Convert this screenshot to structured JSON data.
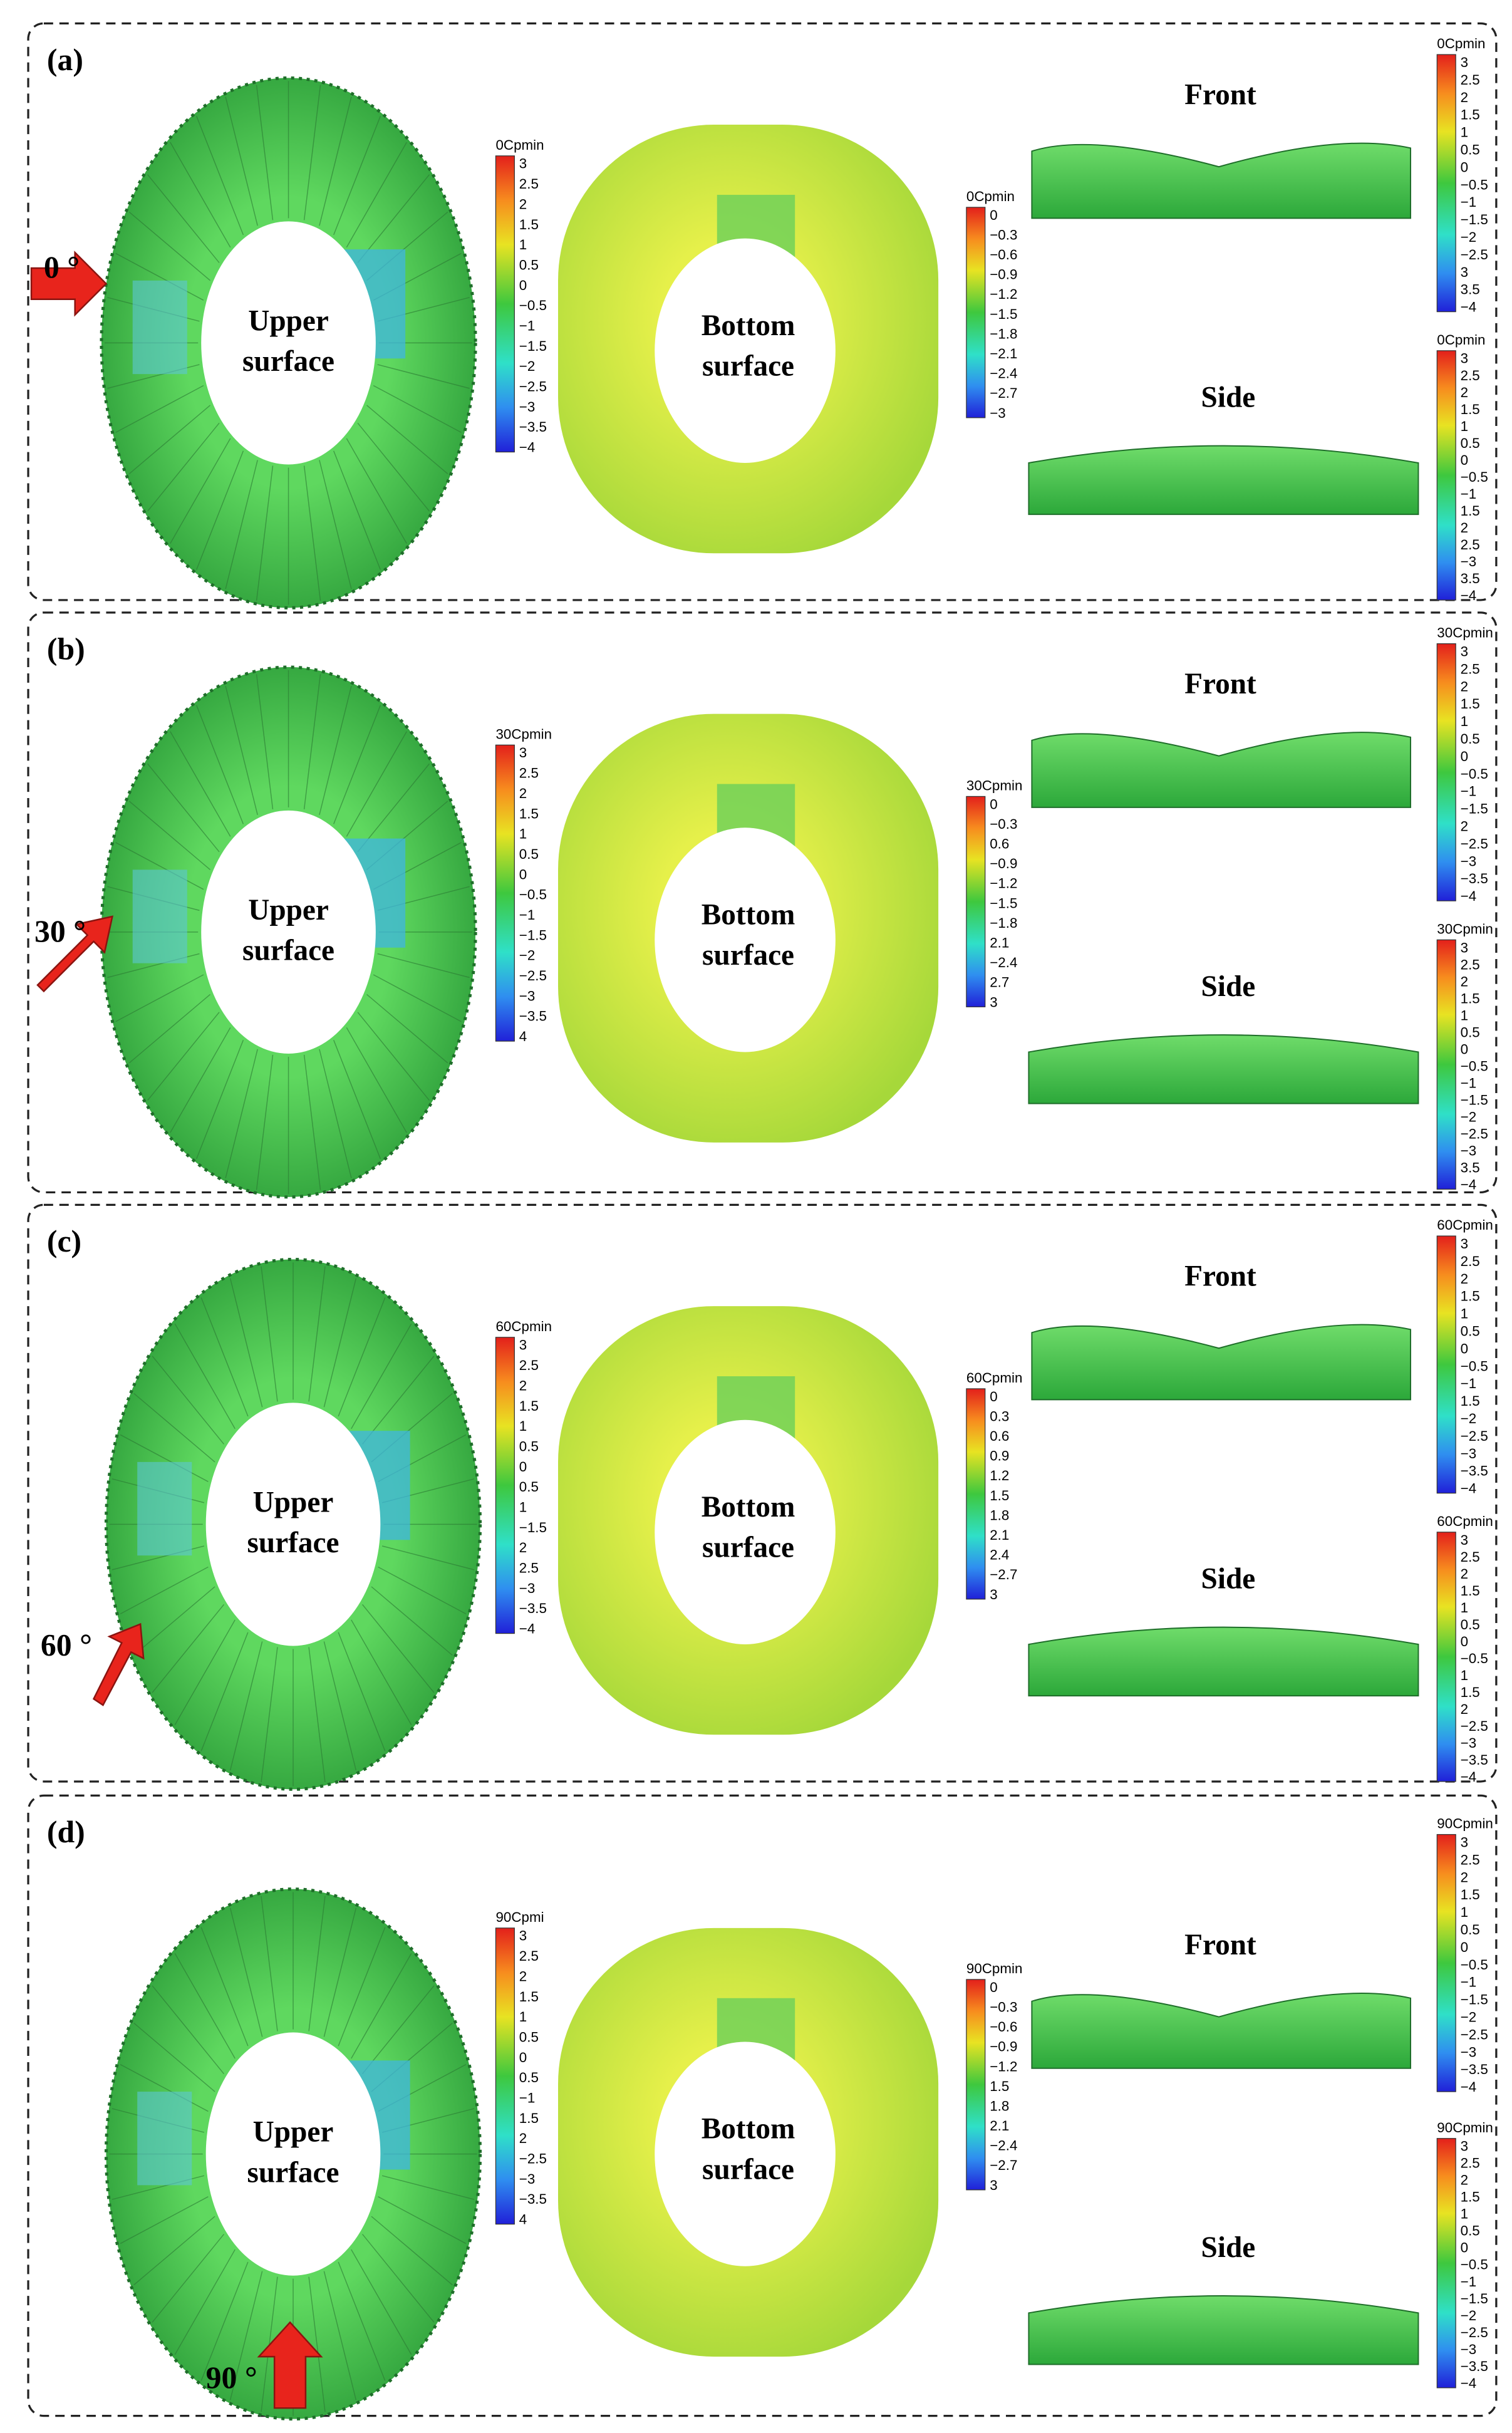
{
  "panels": [
    {
      "label": "(a)",
      "angle": "0 °",
      "upper": [
        "Upper",
        "surface"
      ],
      "bottom": [
        "Bottom",
        "surface"
      ],
      "front": "Front",
      "side": "Side",
      "colorbars": [
        {
          "title": "0Cpmin",
          "ticks": [
            "3",
            "2.5",
            "2",
            "1.5",
            "1",
            "0.5",
            "0",
            "−0.5",
            "−1",
            "−1.5",
            "−2",
            "−2.5",
            "−3",
            "−3.5",
            "−4"
          ]
        },
        {
          "title": "0Cpmin",
          "ticks": [
            "0",
            "−0.3",
            "−0.6",
            "−0.9",
            "−1.2",
            "−1.5",
            "−1.8",
            "−2.1",
            "−2.4",
            "−2.7",
            "−3"
          ]
        },
        {
          "title": "0Cpmin",
          "ticks": [
            "3",
            "2.5",
            "2",
            "1.5",
            "1",
            "0.5",
            "0",
            "−0.5",
            "−1",
            "−1.5",
            "−2",
            "−2.5",
            "3",
            "3.5",
            "−4"
          ]
        },
        {
          "title": "0Cpmin",
          "ticks": [
            "3",
            "2.5",
            "2",
            "1.5",
            "1",
            "0.5",
            "0",
            "−0.5",
            "−1",
            "1.5",
            "2",
            "2.5",
            "−3",
            "3.5",
            "−4"
          ]
        }
      ]
    },
    {
      "label": "(b)",
      "angle": "30 °",
      "upper": [
        "Upper",
        "surface"
      ],
      "bottom": [
        "Bottom",
        "surface"
      ],
      "front": "Front",
      "side": "Side",
      "colorbars": [
        {
          "title": "30Cpmin",
          "ticks": [
            "3",
            "2.5",
            "2",
            "1.5",
            "1",
            "0.5",
            "0",
            "−0.5",
            "−1",
            "−1.5",
            "−2",
            "−2.5",
            "−3",
            "−3.5",
            "4"
          ]
        },
        {
          "title": "30Cpmin",
          "ticks": [
            "0",
            "−0.3",
            "0.6",
            "−0.9",
            "−1.2",
            "−1.5",
            "−1.8",
            "2.1",
            "−2.4",
            "2.7",
            "3"
          ]
        },
        {
          "title": "30Cpmin",
          "ticks": [
            "3",
            "2.5",
            "2",
            "1.5",
            "1",
            "0.5",
            "0",
            "−0.5",
            "−1",
            "−1.5",
            "2",
            "−2.5",
            "−3",
            "−3.5",
            "−4"
          ]
        },
        {
          "title": "30Cpmin",
          "ticks": [
            "3",
            "2.5",
            "2",
            "1.5",
            "1",
            "0.5",
            "0",
            "−0.5",
            "−1",
            "−1.5",
            "−2",
            "−2.5",
            "−3",
            "3.5",
            "−4"
          ]
        }
      ]
    },
    {
      "label": "(c)",
      "angle": "60 °",
      "upper": [
        "Upper",
        "surface"
      ],
      "bottom": [
        "Bottom",
        "surface"
      ],
      "front": "Front",
      "side": "Side",
      "colorbars": [
        {
          "title": "60Cpmin",
          "ticks": [
            "3",
            "2.5",
            "2",
            "1.5",
            "1",
            "0.5",
            "0",
            "0.5",
            "1",
            "−1.5",
            "2",
            "2.5",
            "−3",
            "−3.5",
            "−4"
          ]
        },
        {
          "title": "60Cpmin",
          "ticks": [
            "0",
            "0.3",
            "0.6",
            "0.9",
            "1.2",
            "1.5",
            "1.8",
            "2.1",
            "2.4",
            "−2.7",
            "3"
          ]
        },
        {
          "title": "60Cpmin",
          "ticks": [
            "3",
            "2.5",
            "2",
            "1.5",
            "1",
            "0.5",
            "0",
            "−0.5",
            "−1",
            "1.5",
            "−2",
            "−2.5",
            "−3",
            "−3.5",
            "−4"
          ]
        },
        {
          "title": "60Cpmin",
          "ticks": [
            "3",
            "2.5",
            "2",
            "1.5",
            "1",
            "0.5",
            "0",
            "−0.5",
            "1",
            "1.5",
            "2",
            "−2.5",
            "−3",
            "−3.5",
            "−4"
          ]
        }
      ]
    },
    {
      "label": "(d)",
      "angle": "90 °",
      "upper": [
        "Upper",
        "surface"
      ],
      "bottom": [
        "Bottom",
        "surface"
      ],
      "front": "Front",
      "side": "Side",
      "colorbars": [
        {
          "title": "90Cpmi",
          "ticks": [
            "3",
            "2.5",
            "2",
            "1.5",
            "1",
            "0.5",
            "0",
            "0.5",
            "−1",
            "1.5",
            "2",
            "−2.5",
            "−3",
            "−3.5",
            "4"
          ]
        },
        {
          "title": "90Cpmin",
          "ticks": [
            "0",
            "−0.3",
            "−0.6",
            "−0.9",
            "−1.2",
            "1.5",
            "1.8",
            "2.1",
            "−2.4",
            "−2.7",
            "3"
          ]
        },
        {
          "title": "90Cpmin",
          "ticks": [
            "3",
            "2.5",
            "2",
            "1.5",
            "1",
            "0.5",
            "0",
            "−0.5",
            "−1",
            "−1.5",
            "−2",
            "−2.5",
            "−3",
            "−3.5",
            "−4"
          ]
        },
        {
          "title": "90Cpmin",
          "ticks": [
            "3",
            "2.5",
            "2",
            "1.5",
            "1",
            "0.5",
            "0",
            "−0.5",
            "−1",
            "−1.5",
            "−2",
            "−2.5",
            "−3",
            "−3.5",
            "−4"
          ]
        }
      ]
    }
  ]
}
